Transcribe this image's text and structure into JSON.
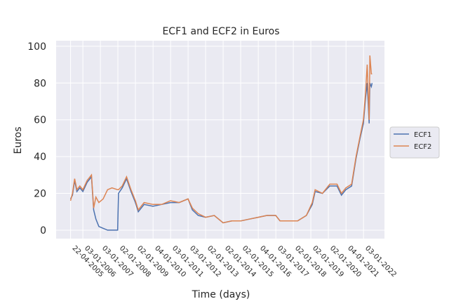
{
  "chart_data": {
    "type": "line",
    "title": "ECF1 and ECF2 in Euros",
    "x_label": "Time (days)",
    "y_label": "Euros",
    "x": [
      "2005-04-22",
      "2005-06-01",
      "2005-07-15",
      "2005-09-01",
      "2005-11-01",
      "2006-01-03",
      "2006-04-01",
      "2006-07-01",
      "2006-08-15",
      "2006-10-01",
      "2006-12-01",
      "2007-03-01",
      "2007-06-01",
      "2007-09-01",
      "2007-12-28",
      "2008-01-15",
      "2008-04-01",
      "2008-07-01",
      "2008-10-01",
      "2009-01-01",
      "2009-03-01",
      "2009-07-01",
      "2010-01-01",
      "2010-07-01",
      "2011-01-01",
      "2011-07-01",
      "2012-01-01",
      "2012-04-01",
      "2012-08-01",
      "2013-01-01",
      "2013-07-01",
      "2014-01-01",
      "2014-07-01",
      "2015-01-01",
      "2015-07-01",
      "2016-01-01",
      "2016-07-01",
      "2017-01-01",
      "2017-04-01",
      "2017-10-01",
      "2018-04-01",
      "2018-10-01",
      "2019-02-01",
      "2019-04-01",
      "2019-09-01",
      "2020-02-01",
      "2020-07-01",
      "2020-10-01",
      "2021-01-01",
      "2021-05-01",
      "2021-08-01",
      "2021-10-15",
      "2022-01-01",
      "2022-02-15",
      "2022-03-20",
      "2022-05-01",
      "2022-05-15",
      "2022-06-15",
      "2022-07-01"
    ],
    "series": [
      {
        "name": "ECF1",
        "color": "#4c72b0",
        "values": [
          17,
          19,
          27,
          21,
          23,
          21,
          26,
          29,
          11,
          6,
          2,
          1,
          0,
          0,
          0,
          20,
          23,
          28,
          21,
          15,
          10,
          14,
          13,
          14,
          15,
          15,
          17,
          11,
          8,
          7,
          8,
          4,
          5,
          5,
          6,
          7,
          8,
          8,
          5,
          5,
          5,
          8,
          14,
          21,
          20,
          24,
          24,
          19,
          22,
          24,
          39,
          49,
          58,
          72,
          80,
          58,
          80,
          78,
          80
        ]
      },
      {
        "name": "ECF2",
        "color": "#dd8452",
        "values": [
          16,
          20,
          28,
          22,
          24,
          22,
          27,
          30,
          12,
          18,
          15,
          17,
          22,
          23,
          22,
          22,
          24,
          29,
          22,
          16,
          11,
          15,
          14,
          14,
          16,
          15,
          17,
          12,
          9,
          7,
          8,
          4,
          5,
          5,
          6,
          7,
          8,
          8,
          5,
          5,
          5,
          8,
          15,
          22,
          20,
          25,
          25,
          20,
          23,
          25,
          40,
          50,
          60,
          75,
          90,
          60,
          95,
          85,
          85
        ]
      }
    ],
    "xlim": [
      "2004-06-25",
      "2023-03-15"
    ],
    "xticks": [
      {
        "value": "2005-04-22",
        "label": "22-04-2005"
      },
      {
        "value": "2006-01-03",
        "label": "03-01-2006"
      },
      {
        "value": "2007-01-03",
        "label": "03-01-2007"
      },
      {
        "value": "2008-01-02",
        "label": "02-01-2008"
      },
      {
        "value": "2009-01-02",
        "label": "02-01-2009"
      },
      {
        "value": "2010-01-04",
        "label": "04-01-2010"
      },
      {
        "value": "2011-01-03",
        "label": "03-01-2011"
      },
      {
        "value": "2012-01-03",
        "label": "03-01-2012"
      },
      {
        "value": "2013-01-02",
        "label": "02-01-2013"
      },
      {
        "value": "2014-01-02",
        "label": "02-01-2014"
      },
      {
        "value": "2015-01-02",
        "label": "02-01-2015"
      },
      {
        "value": "2016-01-04",
        "label": "04-01-2016"
      },
      {
        "value": "2017-01-03",
        "label": "03-01-2017"
      },
      {
        "value": "2018-01-02",
        "label": "02-01-2018"
      },
      {
        "value": "2019-01-02",
        "label": "02-01-2019"
      },
      {
        "value": "2020-01-02",
        "label": "02-01-2020"
      },
      {
        "value": "2021-01-04",
        "label": "04-01-2021"
      },
      {
        "value": "2022-01-03",
        "label": "03-01-2022"
      }
    ],
    "ylim": [
      -4.6,
      103
    ],
    "yticks": [
      0,
      20,
      40,
      60,
      80,
      100
    ],
    "grid": true,
    "legend": "right"
  }
}
